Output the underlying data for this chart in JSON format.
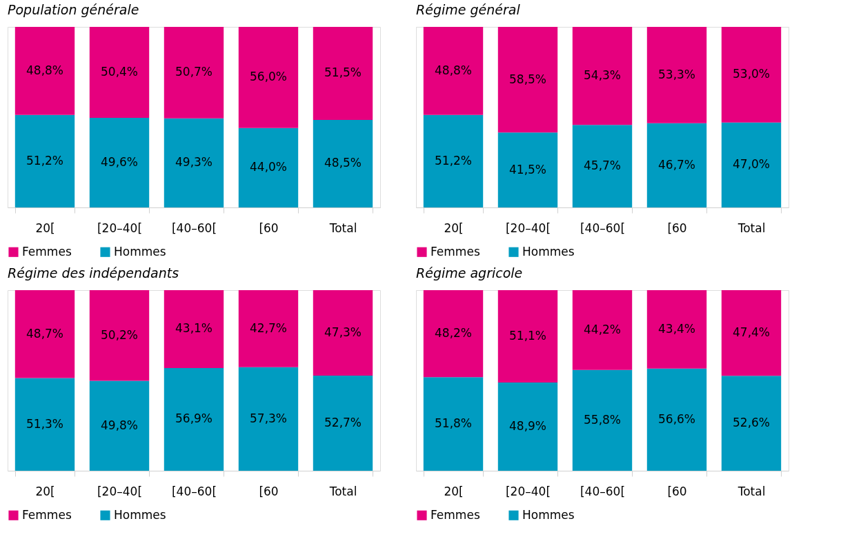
{
  "chart_data": [
    {
      "type": "bar",
      "title": "Population générale",
      "categories": [
        "20[",
        "[20–40[",
        "[40–60[",
        "[60",
        "Total"
      ],
      "stacked": true,
      "legend": "bottom",
      "ylim": [
        0,
        100
      ],
      "series": [
        {
          "name": "Hommes",
          "color": "#009cc1",
          "values": [
            51.2,
            49.6,
            49.3,
            44.0,
            48.5
          ],
          "value_labels": [
            "51,2%",
            "49,6%",
            "49,3%",
            "44,0%",
            "48,5%"
          ]
        },
        {
          "name": "Femmes",
          "color": "#e6007e",
          "values": [
            48.8,
            50.4,
            50.7,
            56.0,
            51.5
          ],
          "value_labels": [
            "48,8%",
            "50,4%",
            "50,7%",
            "56,0%",
            "51,5%"
          ]
        }
      ]
    },
    {
      "type": "bar",
      "title": "Régime général",
      "categories": [
        "20[",
        "[20–40[",
        "[40–60[",
        "[60",
        "Total"
      ],
      "stacked": true,
      "legend": "bottom",
      "ylim": [
        0,
        100
      ],
      "series": [
        {
          "name": "Hommes",
          "color": "#009cc1",
          "values": [
            51.2,
            41.5,
            45.7,
            46.7,
            47.0
          ],
          "value_labels": [
            "51,2%",
            "41,5%",
            "45,7%",
            "46,7%",
            "47,0%"
          ]
        },
        {
          "name": "Femmes",
          "color": "#e6007e",
          "values": [
            48.8,
            58.5,
            54.3,
            53.3,
            53.0
          ],
          "value_labels": [
            "48,8%",
            "58,5%",
            "54,3%",
            "53,3%",
            "53,0%"
          ]
        }
      ]
    },
    {
      "type": "bar",
      "title": "Régime des indépendants",
      "categories": [
        "20[",
        "[20–40[",
        "[40–60[",
        "[60",
        "Total"
      ],
      "stacked": true,
      "legend": "bottom",
      "ylim": [
        0,
        100
      ],
      "series": [
        {
          "name": "Hommes",
          "color": "#009cc1",
          "values": [
            51.3,
            49.8,
            56.9,
            57.3,
            52.7
          ],
          "value_labels": [
            "51,3%",
            "49,8%",
            "56,9%",
            "57,3%",
            "52,7%"
          ]
        },
        {
          "name": "Femmes",
          "color": "#e6007e",
          "values": [
            48.7,
            50.2,
            43.1,
            42.7,
            47.3
          ],
          "value_labels": [
            "48,7%",
            "50,2%",
            "43,1%",
            "42,7%",
            "47,3%"
          ]
        }
      ]
    },
    {
      "type": "bar",
      "title": "Régime agricole",
      "categories": [
        "20[",
        "[20–40[",
        "[40–60[",
        "[60",
        "Total"
      ],
      "stacked": true,
      "legend": "bottom",
      "ylim": [
        0,
        100
      ],
      "series": [
        {
          "name": "Hommes",
          "color": "#009cc1",
          "values": [
            51.8,
            48.9,
            55.8,
            56.6,
            52.6
          ],
          "value_labels": [
            "51,8%",
            "48,9%",
            "55,8%",
            "56,6%",
            "52,6%"
          ]
        },
        {
          "name": "Femmes",
          "color": "#e6007e",
          "values": [
            48.2,
            51.1,
            44.2,
            43.4,
            47.4
          ],
          "value_labels": [
            "48,2%",
            "51,1%",
            "44,2%",
            "43,4%",
            "47,4%"
          ]
        }
      ]
    }
  ]
}
